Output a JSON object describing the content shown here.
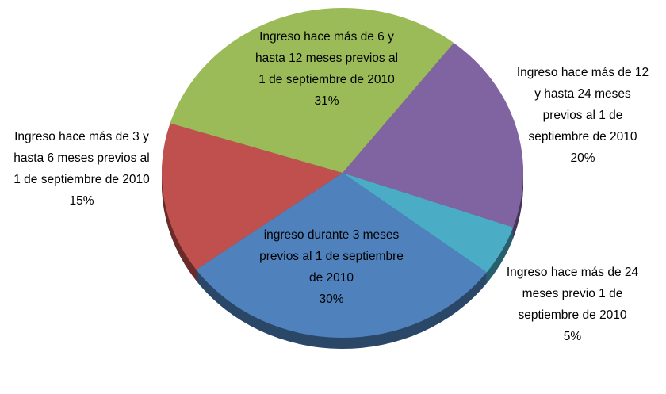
{
  "chart_data": {
    "type": "pie",
    "categories": [
      "Ingreso hace más de 12 y hasta 24 meses previos al 1 de septiembre de 2010",
      "Ingreso hace más de 24 meses previo 1 de septiembre de 2010",
      "ingreso durante 3 meses previos al 1 de septiembre de 2010",
      "Ingreso hace más de 3 y hasta 6 meses previos al 1 de septiembre de 2010",
      "Ingreso hace más de 6 y hasta 12 meses previos al 1 de septiembre de 2010"
    ],
    "values": [
      20,
      5,
      30,
      15,
      31
    ],
    "value_labels": [
      "20%",
      "5%",
      "30%",
      "15%",
      "31%"
    ],
    "colors": [
      "#8064a2",
      "#4bacc6",
      "#4f81bd",
      "#c0504d",
      "#9bbb59"
    ]
  }
}
